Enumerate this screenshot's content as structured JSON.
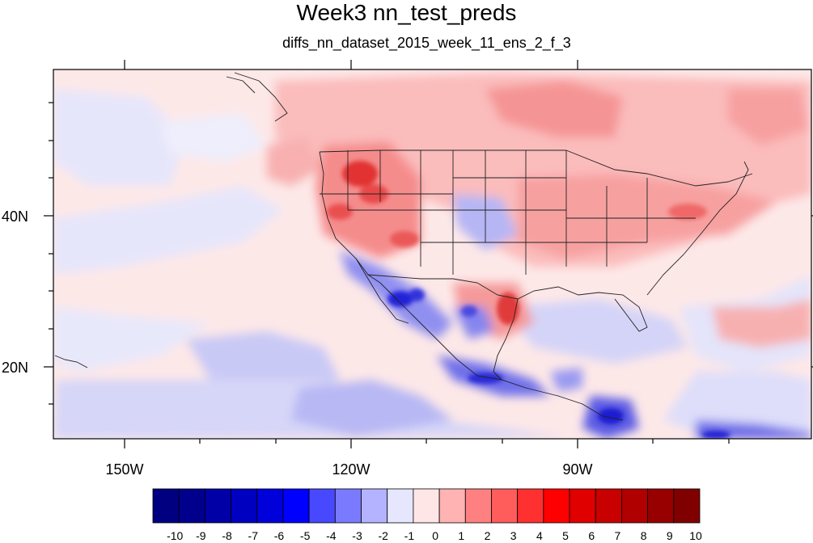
{
  "title": "Week3 nn_test_preds",
  "subtitle": "diffs_nn_dataset_2015_week_11_ens_2_f_3",
  "x_tick_labels": [
    "150W",
    "120W",
    "90W"
  ],
  "y_tick_labels": [
    "40N",
    "20N"
  ],
  "colorbar": {
    "labels": [
      "-10",
      "-9",
      "-8",
      "-7",
      "-6",
      "-5",
      "-4",
      "-3",
      "-2",
      "-1",
      "0",
      "1",
      "2",
      "3",
      "4",
      "5",
      "6",
      "7",
      "8",
      "9",
      "10"
    ],
    "colors": [
      "#000080",
      "#00008c",
      "#0000a6",
      "#0000c0",
      "#0000da",
      "#0000ff",
      "#4848ff",
      "#7a7aff",
      "#b3b3ff",
      "#e6e6ff",
      "#ffe6e6",
      "#ffb3b3",
      "#ff8080",
      "#ff5c5c",
      "#ff3030",
      "#ff0000",
      "#e00000",
      "#c80000",
      "#b00000",
      "#980000",
      "#800000"
    ]
  },
  "chart_data": {
    "type": "heatmap",
    "title": "Week3 nn_test_preds",
    "subtitle": "diffs_nn_dataset_2015_week_11_ens_2_f_3",
    "x_range": [
      -160,
      -60
    ],
    "y_range": [
      10,
      60
    ],
    "x_ticks": [
      "150W",
      "120W",
      "90W"
    ],
    "y_ticks": [
      "40N",
      "20N"
    ],
    "colorbar_min": -10,
    "colorbar_max": 10
  }
}
